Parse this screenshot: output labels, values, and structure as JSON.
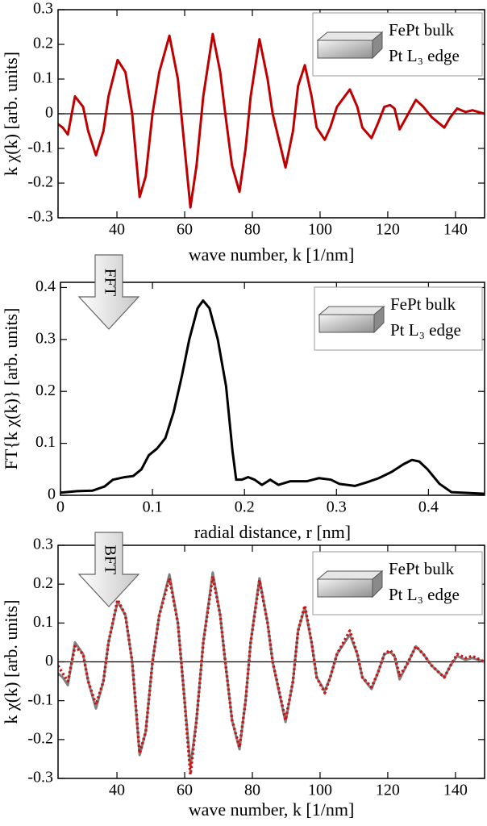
{
  "chart_data": [
    {
      "type": "line",
      "xlabel": "wave number, k [1/nm]",
      "ylabel": "k χ(k) [arb. units]",
      "legend_lines": [
        "FePt bulk",
        "Pt L₃ edge"
      ],
      "zero_line": true,
      "xlim": [
        22.6,
        148.6
      ],
      "ylim": [
        -0.3,
        0.3
      ],
      "xticks": [
        40,
        60,
        80,
        100,
        120,
        140
      ],
      "yticks": [
        -0.3,
        -0.2,
        -0.1,
        0,
        0.1,
        0.2,
        0.3
      ],
      "x": [
        22.6,
        24,
        25.5,
        27.6,
        30,
        31.5,
        33.8,
        36,
        37.5,
        40.2,
        42.5,
        44.5,
        46.7,
        48.5,
        50.5,
        52.5,
        55.5,
        58,
        59.5,
        61.7,
        63.5,
        65.5,
        68.3,
        70.5,
        72,
        74,
        76.2,
        78,
        79.5,
        82.1,
        84.5,
        86,
        89.8,
        92,
        93.5,
        95.5,
        97.5,
        99,
        101.4,
        103,
        105,
        108.8,
        111,
        112.5,
        115.2,
        117,
        119,
        120.7,
        122,
        123.5,
        125.5,
        128.3,
        130.5,
        133,
        136.7,
        138.5,
        140.5,
        143,
        145,
        148.6
      ],
      "series": [
        {
          "color": "#c00000",
          "line_style": "solid",
          "values": [
            -0.03,
            -0.04,
            -0.06,
            0.05,
            0.02,
            -0.05,
            -0.12,
            -0.05,
            0.05,
            0.155,
            0.12,
            0.0,
            -0.24,
            -0.18,
            0.0,
            0.12,
            0.225,
            0.1,
            -0.05,
            -0.27,
            -0.15,
            0.05,
            0.23,
            0.12,
            0.0,
            -0.15,
            -0.225,
            -0.1,
            0.05,
            0.215,
            0.1,
            0.0,
            -0.155,
            -0.05,
            0.08,
            0.14,
            0.05,
            -0.04,
            -0.075,
            -0.04,
            0.02,
            0.07,
            0.02,
            -0.04,
            -0.07,
            -0.03,
            0.02,
            0.025,
            0.015,
            -0.045,
            -0.01,
            0.04,
            0.02,
            -0.01,
            -0.04,
            -0.01,
            0.015,
            0.005,
            0.01,
            0.0
          ]
        }
      ]
    },
    {
      "type": "line",
      "xlabel": "radial distance, r [nm]",
      "ylabel": "FT{k χ(k)} [arb. units]",
      "legend_lines": [
        "FePt bulk",
        "Pt L₃ edge"
      ],
      "arrow_label": "FFT",
      "zero_line": false,
      "xlim": [
        0,
        0.461
      ],
      "ylim": [
        0,
        0.41
      ],
      "xticks": [
        0,
        0.1,
        0.2,
        0.3,
        0.4
      ],
      "yticks": [
        0,
        0.1,
        0.2,
        0.3,
        0.4
      ],
      "x": [
        0,
        0.018,
        0.035,
        0.048,
        0.057,
        0.07,
        0.079,
        0.088,
        0.096,
        0.105,
        0.114,
        0.123,
        0.132,
        0.14,
        0.149,
        0.155,
        0.162,
        0.171,
        0.18,
        0.187,
        0.191,
        0.197,
        0.204,
        0.211,
        0.219,
        0.228,
        0.237,
        0.25,
        0.268,
        0.281,
        0.294,
        0.303,
        0.32,
        0.333,
        0.346,
        0.36,
        0.373,
        0.382,
        0.39,
        0.399,
        0.412,
        0.425,
        0.461
      ],
      "series": [
        {
          "color": "#000000",
          "line_style": "solid",
          "values": [
            0.005,
            0.008,
            0.009,
            0.017,
            0.03,
            0.035,
            0.037,
            0.05,
            0.077,
            0.09,
            0.11,
            0.16,
            0.23,
            0.3,
            0.36,
            0.375,
            0.36,
            0.3,
            0.21,
            0.085,
            0.03,
            0.03,
            0.035,
            0.03,
            0.02,
            0.03,
            0.02,
            0.027,
            0.027,
            0.033,
            0.03,
            0.022,
            0.018,
            0.025,
            0.033,
            0.045,
            0.06,
            0.068,
            0.065,
            0.05,
            0.022,
            0.006,
            0.003
          ]
        }
      ]
    },
    {
      "type": "line",
      "xlabel": "wave number, k [1/nm]",
      "ylabel": "k χ(k) [arb. units]",
      "legend_lines": [
        "FePt bulk",
        "Pt L₃ edge"
      ],
      "arrow_label": "BFT",
      "zero_line": true,
      "xlim": [
        22.6,
        148.6
      ],
      "ylim": [
        -0.3,
        0.3
      ],
      "xticks": [
        40,
        60,
        80,
        100,
        120,
        140
      ],
      "yticks": [
        -0.3,
        -0.2,
        -0.1,
        0,
        0.1,
        0.2,
        0.3
      ],
      "x": [
        22.6,
        24,
        25.5,
        27.6,
        30,
        31.5,
        33.8,
        36,
        37.5,
        40.2,
        42.5,
        44.5,
        46.7,
        48.5,
        50.5,
        52.5,
        55.5,
        58,
        59.5,
        61.7,
        63.5,
        65.5,
        68.3,
        70.5,
        72,
        74,
        76.2,
        78,
        79.5,
        82.1,
        84.5,
        86,
        89.8,
        92,
        93.5,
        95.5,
        97.5,
        99,
        101.4,
        103,
        105,
        108.8,
        111,
        112.5,
        115.2,
        117,
        119,
        120.7,
        122,
        123.5,
        125.5,
        128.3,
        130.5,
        133,
        136.7,
        138.5,
        140.5,
        143,
        145,
        148.6
      ],
      "series": [
        {
          "color": "#808080",
          "line_style": "solid",
          "values": [
            -0.03,
            -0.04,
            -0.06,
            0.05,
            0.02,
            -0.05,
            -0.12,
            -0.05,
            0.05,
            0.155,
            0.12,
            0.0,
            -0.24,
            -0.18,
            0.0,
            0.12,
            0.225,
            0.1,
            -0.05,
            -0.27,
            -0.15,
            0.05,
            0.23,
            0.12,
            0.0,
            -0.15,
            -0.225,
            -0.1,
            0.05,
            0.215,
            0.1,
            0.0,
            -0.155,
            -0.05,
            0.08,
            0.14,
            0.05,
            -0.04,
            -0.075,
            -0.04,
            0.02,
            0.07,
            0.02,
            -0.04,
            -0.07,
            -0.03,
            0.02,
            0.025,
            0.015,
            -0.045,
            -0.01,
            0.04,
            0.02,
            -0.01,
            -0.04,
            -0.01,
            0.015,
            0.005,
            0.01,
            0.0
          ]
        },
        {
          "color": "#cc1111",
          "line_style": "dotted",
          "values": [
            -0.01,
            -0.03,
            -0.05,
            0.04,
            0.02,
            -0.05,
            -0.11,
            -0.05,
            0.05,
            0.16,
            0.12,
            0.0,
            -0.235,
            -0.18,
            0.0,
            0.12,
            0.215,
            0.1,
            -0.05,
            -0.29,
            -0.15,
            0.05,
            0.22,
            0.12,
            0.0,
            -0.15,
            -0.22,
            -0.1,
            0.05,
            0.21,
            0.1,
            0.0,
            -0.15,
            -0.05,
            0.08,
            0.145,
            0.05,
            -0.04,
            -0.08,
            -0.04,
            0.02,
            0.08,
            0.02,
            -0.04,
            -0.065,
            -0.03,
            0.02,
            0.03,
            0.015,
            -0.035,
            -0.01,
            0.04,
            0.02,
            -0.01,
            -0.04,
            -0.01,
            0.02,
            0.01,
            0.015,
            0.0
          ]
        }
      ]
    }
  ]
}
